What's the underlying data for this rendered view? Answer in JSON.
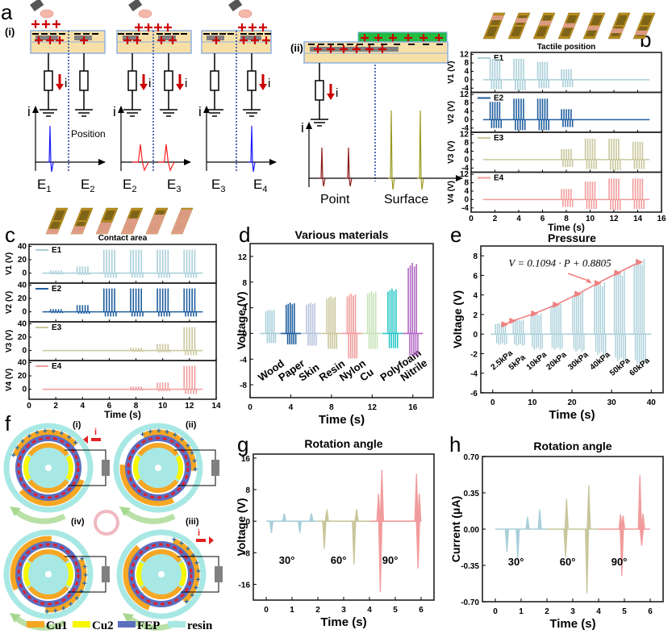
{
  "figure": {
    "panel_labels": [
      "a",
      "b",
      "c",
      "d",
      "e",
      "f",
      "g",
      "h"
    ],
    "panel_a": {
      "sub_i": "(i)",
      "sub_ii": "(ii)",
      "current_symbol": "i",
      "position_label": "Position",
      "electrodes": [
        [
          "E",
          "1"
        ],
        [
          "E",
          "2"
        ],
        [
          "E",
          "2"
        ],
        [
          "E",
          "3"
        ],
        [
          "E",
          "3"
        ],
        [
          "E",
          "4"
        ]
      ],
      "point_label": "Point",
      "surface_label": "Surface",
      "colors": {
        "charge": "#cc0000",
        "peak_blue": "#1a1aff",
        "peak_red": "#ff2020",
        "peak_point": "#8b1a1a",
        "peak_surface": "#9a9a20",
        "substrate": "#f7e0a8",
        "electrode": "#808080",
        "border": "#8fb0e0",
        "slider": "#22bb44",
        "divider": "#1f3f9f"
      }
    },
    "panel_f": {
      "states": [
        "(i)",
        "(ii)",
        "(iii)",
        "(iv)"
      ],
      "current_symbol": "i",
      "legend": [
        {
          "label": "Cu1",
          "color": "#f5a623"
        },
        {
          "label": "Cu2",
          "color": "#f7f700"
        },
        {
          "label": "FEP",
          "color": "#5b6fc0"
        },
        {
          "label": "resin",
          "color": "#a8e8e4"
        }
      ]
    }
  },
  "chart_data": [
    {
      "id": "b",
      "type": "line",
      "title": "Tactile position",
      "xlabel": "Time (s)",
      "xlim": [
        0,
        16
      ],
      "xticks": [
        0,
        2,
        4,
        6,
        8,
        10,
        12,
        14,
        16
      ],
      "subplots": [
        {
          "ylabel": "V1 (V)",
          "legend": "E1",
          "color": "#a9cfd9",
          "ylim": [
            -6,
            13
          ],
          "yticks": [
            12,
            8,
            4,
            0,
            -4
          ],
          "bursts": [
            {
              "t": 2,
              "max": 10,
              "min": -4.5
            },
            {
              "t": 4,
              "max": 10,
              "min": -5
            },
            {
              "t": 6,
              "max": 8.5,
              "min": -4
            },
            {
              "t": 8,
              "max": 5,
              "min": -3.5
            }
          ]
        },
        {
          "ylabel": "V2 (V)",
          "legend": "E2",
          "color": "#1f5e9e",
          "ylim": [
            -6,
            13
          ],
          "yticks": [
            12,
            8,
            4,
            0,
            -4
          ],
          "bursts": [
            {
              "t": 2,
              "max": 8.5,
              "min": -4
            },
            {
              "t": 4,
              "max": 10,
              "min": -5
            },
            {
              "t": 6,
              "max": 10,
              "min": -5
            },
            {
              "t": 8,
              "max": 5,
              "min": -3.5
            }
          ]
        },
        {
          "ylabel": "V3 (V)",
          "legend": "E3",
          "color": "#c9c79c",
          "ylim": [
            -6,
            13
          ],
          "yticks": [
            12,
            8,
            4,
            0,
            -4
          ],
          "bursts": [
            {
              "t": 8,
              "max": 5,
              "min": -3.5
            },
            {
              "t": 10,
              "max": 10,
              "min": -4.5
            },
            {
              "t": 12,
              "max": 10,
              "min": -5
            },
            {
              "t": 14,
              "max": 8.5,
              "min": -4.5
            }
          ]
        },
        {
          "ylabel": "V4 (V)",
          "legend": "E4",
          "color": "#f19c9c",
          "ylim": [
            -6,
            13
          ],
          "yticks": [
            12,
            8,
            4,
            0,
            -4
          ],
          "bursts": [
            {
              "t": 8,
              "max": 5,
              "min": -3.5
            },
            {
              "t": 10,
              "max": 8.5,
              "min": -4.5
            },
            {
              "t": 12,
              "max": 10,
              "min": -5
            },
            {
              "t": 14,
              "max": 10,
              "min": -4.5
            }
          ]
        }
      ],
      "baseline_range": [
        1,
        15
      ]
    },
    {
      "id": "c",
      "type": "line",
      "title": "Contact area",
      "xlabel": "Time (s)",
      "xlim": [
        0,
        14
      ],
      "xticks": [
        0,
        2,
        4,
        6,
        8,
        10,
        12,
        14
      ],
      "subplots": [
        {
          "ylabel": "V1 (V)",
          "legend": "E1",
          "color": "#a9cfd9",
          "ylim": [
            -15,
            43
          ],
          "yticks": [
            40,
            20,
            0
          ],
          "bursts": [
            {
              "t": 2,
              "max": 4,
              "min": -2
            },
            {
              "t": 4,
              "max": 10,
              "min": -3
            },
            {
              "t": 6,
              "max": 35,
              "min": -7
            },
            {
              "t": 8,
              "max": 35,
              "min": -7
            },
            {
              "t": 10,
              "max": 35,
              "min": -7
            },
            {
              "t": 12,
              "max": 35,
              "min": -7
            }
          ]
        },
        {
          "ylabel": "V2 (V)",
          "legend": "E2",
          "color": "#1f5e9e",
          "ylim": [
            -15,
            43
          ],
          "yticks": [
            40,
            20,
            0
          ],
          "bursts": [
            {
              "t": 2,
              "max": 4,
              "min": -2
            },
            {
              "t": 4,
              "max": 10,
              "min": -3
            },
            {
              "t": 6,
              "max": 35,
              "min": -7
            },
            {
              "t": 8,
              "max": 35,
              "min": -7
            },
            {
              "t": 10,
              "max": 35,
              "min": -7
            },
            {
              "t": 12,
              "max": 35,
              "min": -7
            }
          ]
        },
        {
          "ylabel": "V3 (V)",
          "legend": "E3",
          "color": "#c9c79c",
          "ylim": [
            -15,
            43
          ],
          "yticks": [
            40,
            20,
            0
          ],
          "bursts": [
            {
              "t": 8,
              "max": 4,
              "min": -2
            },
            {
              "t": 10,
              "max": 10,
              "min": -3
            },
            {
              "t": 12,
              "max": 35,
              "min": -7
            }
          ]
        },
        {
          "ylabel": "V4 (V)",
          "legend": "E4",
          "color": "#f19c9c",
          "ylim": [
            -15,
            43
          ],
          "yticks": [
            40,
            20,
            0
          ],
          "bursts": [
            {
              "t": 8,
              "max": 4,
              "min": -2
            },
            {
              "t": 10,
              "max": 10,
              "min": -3
            },
            {
              "t": 12,
              "max": 35,
              "min": -7
            }
          ]
        }
      ],
      "baseline_range": [
        1,
        13
      ]
    },
    {
      "id": "d",
      "type": "line",
      "title": "Various materials",
      "xlabel": "Time (s)",
      "ylabel": "Voltage (V)",
      "xlim": [
        0,
        18
      ],
      "ylim": [
        -10,
        14
      ],
      "xticks": [
        0,
        4,
        8,
        12,
        16
      ],
      "yticks": [
        12,
        8,
        4,
        0,
        -4,
        -8
      ],
      "materials": [
        {
          "name": "Wood",
          "color": "#a9cfd9",
          "t": 2,
          "max": 3.7,
          "min": -1.5
        },
        {
          "name": "Paper",
          "color": "#1f5e9e",
          "t": 4,
          "max": 4.8,
          "min": -1.7
        },
        {
          "name": "Skin",
          "color": "#b8c4de",
          "t": 6,
          "max": 4.8,
          "min": -1.9
        },
        {
          "name": "Resin",
          "color": "#c9c79c",
          "t": 8,
          "max": 5.8,
          "min": -2.4
        },
        {
          "name": "Nylon",
          "color": "#f19c9c",
          "t": 10,
          "max": 6.2,
          "min": -3.9
        },
        {
          "name": "Cu",
          "color": "#c6e3b8",
          "t": 12,
          "max": 6.6,
          "min": -2.4
        },
        {
          "name": "Polyfoam",
          "color": "#2ec8c8",
          "t": 14,
          "max": 7.0,
          "min": -2.3
        },
        {
          "name": "Nitrile",
          "color": "#b36bc4",
          "t": 16,
          "max": 11.0,
          "min": -3.5
        }
      ]
    },
    {
      "id": "e",
      "type": "line",
      "title": "Pressure",
      "xlabel": "Time (s)",
      "ylabel": "Voltage (V)",
      "xlim": [
        -3,
        43
      ],
      "ylim": [
        -6,
        9
      ],
      "xticks": [
        0,
        10,
        20,
        30,
        40
      ],
      "yticks": [
        8,
        6,
        4,
        2,
        0,
        -2,
        -4,
        -6
      ],
      "equation": "V = 0.1094 · P + 0.8805",
      "signal_color": "#a9cfd9",
      "fit_color": "#f08080",
      "groups": [
        {
          "label": "2.5kPa",
          "t": 2,
          "max": 1.1,
          "min": -1.1
        },
        {
          "label": "5kPa",
          "t": 6.5,
          "max": 1.5,
          "min": -1.2
        },
        {
          "label": "10kPa",
          "t": 11,
          "max": 2.1,
          "min": -1.6
        },
        {
          "label": "20kPa",
          "t": 16,
          "max": 3.1,
          "min": -1.6
        },
        {
          "label": "30kPa",
          "t": 21.5,
          "max": 4.3,
          "min": -1.8
        },
        {
          "label": "40kPa",
          "t": 27,
          "max": 5.3,
          "min": -2.1
        },
        {
          "label": "50kPa",
          "t": 32,
          "max": 6.5,
          "min": -2.8
        },
        {
          "label": "60kPa",
          "t": 37,
          "max": 7.7,
          "min": -3.1
        }
      ],
      "fit_points": [
        [
          3,
          1.0
        ],
        [
          5,
          1.35
        ],
        [
          10.5,
          2.1
        ],
        [
          16,
          3.0
        ],
        [
          21.5,
          4.1
        ],
        [
          26.5,
          5.2
        ],
        [
          31.5,
          6.25
        ],
        [
          37,
          7.35
        ]
      ]
    },
    {
      "id": "g",
      "type": "line",
      "title": "Rotation angle",
      "xlabel": "Time (s)",
      "ylabel": "Voltage (V)",
      "xlim": [
        -0.5,
        6.5
      ],
      "ylim": [
        -20,
        17
      ],
      "xticks": [
        0,
        1,
        2,
        3,
        4,
        5,
        6
      ],
      "yticks": [
        16,
        8,
        0,
        -8,
        -16
      ],
      "segments": [
        {
          "label": "30°",
          "color": "#a9cfd9",
          "range": [
            0,
            2
          ],
          "spikes": [
            [
              0.2,
              -3
            ],
            [
              0.7,
              2
            ],
            [
              1.3,
              -3
            ],
            [
              1.75,
              2
            ]
          ]
        },
        {
          "label": "60°",
          "color": "#c9c79c",
          "range": [
            2,
            4
          ],
          "spikes": [
            [
              2.25,
              -7
            ],
            [
              2.35,
              3
            ],
            [
              3.4,
              -11
            ],
            [
              3.5,
              3
            ]
          ]
        },
        {
          "label": "90°",
          "color": "#f19c9c",
          "range": [
            4,
            6
          ],
          "spikes": [
            [
              4.35,
              7
            ],
            [
              4.42,
              -18
            ],
            [
              4.48,
              13
            ],
            [
              5.82,
              12
            ],
            [
              5.88,
              -12
            ],
            [
              5.93,
              7
            ]
          ]
        }
      ]
    },
    {
      "id": "h",
      "type": "line",
      "title": "Rotation angle",
      "xlabel": "Time (s)",
      "ylabel": "Current (μA)",
      "xlim": [
        -0.5,
        6.5
      ],
      "ylim": [
        -0.7,
        0.7
      ],
      "xticks": [
        0,
        1,
        2,
        3,
        4,
        5,
        6
      ],
      "yticks": [
        "0.70",
        "0.35",
        "0.00",
        "-0.35",
        "-0.70"
      ],
      "segments": [
        {
          "label": "30°",
          "color": "#a9cfd9",
          "range": [
            0,
            2
          ],
          "spikes": [
            [
              0.45,
              -0.22
            ],
            [
              0.87,
              -0.28
            ],
            [
              1.25,
              0.12
            ],
            [
              1.72,
              0.19
            ]
          ]
        },
        {
          "label": "60°",
          "color": "#c9c79c",
          "range": [
            2,
            4
          ],
          "spikes": [
            [
              2.72,
              -0.27
            ],
            [
              2.76,
              0.29
            ],
            [
              3.55,
              -0.62
            ],
            [
              3.62,
              0.42
            ]
          ]
        },
        {
          "label": "90°",
          "color": "#f19c9c",
          "range": [
            4,
            6
          ],
          "spikes": [
            [
              4.85,
              0.14
            ],
            [
              4.9,
              -0.45
            ],
            [
              4.95,
              0.13
            ],
            [
              5.6,
              0.52
            ],
            [
              5.67,
              -0.16
            ],
            [
              5.72,
              0.15
            ]
          ]
        }
      ]
    }
  ]
}
